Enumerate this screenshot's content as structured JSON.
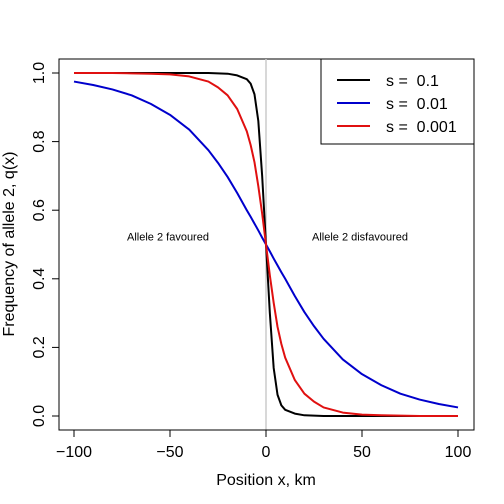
{
  "chart_data": {
    "type": "line",
    "xlabel": "Position x, km",
    "ylabel": "Frequency of allele 2, q(x)",
    "xlim": [
      -100,
      100
    ],
    "ylim": [
      0,
      1
    ],
    "xticks": [
      -100,
      -50,
      0,
      50,
      100
    ],
    "xtick_labels": [
      "−100",
      "−50",
      "0",
      "50",
      "100"
    ],
    "yticks": [
      0,
      0.2,
      0.4,
      0.6,
      0.8,
      1
    ],
    "ytick_labels": [
      "0.0",
      "0.2",
      "0.4",
      "0.6",
      "0.8",
      "1.0"
    ],
    "grid": false,
    "legend_position": "top-right",
    "vertical_line": {
      "x": 0,
      "color": "#cccccc"
    },
    "annotations": [
      {
        "text": "Allele 2 favoured",
        "x": -50,
        "y": 0.5
      },
      {
        "text": "Allele 2 disfavoured",
        "x": 50,
        "y": 0.5
      }
    ],
    "x": [
      -100,
      -90,
      -80,
      -70,
      -60,
      -50,
      -40,
      -30,
      -25,
      -20,
      -15,
      -10,
      -8,
      -6,
      -4,
      -2,
      0,
      2,
      4,
      6,
      8,
      10,
      15,
      20,
      25,
      30,
      40,
      50,
      60,
      70,
      80,
      90,
      100
    ],
    "series": [
      {
        "name": "s =  0.1",
        "color": "#000000",
        "values": [
          1.0,
          1.0,
          1.0,
          1.0,
          1.0,
          1.0,
          1.0,
          1.0,
          0.999,
          0.998,
          0.993,
          0.982,
          0.969,
          0.938,
          0.86,
          0.7,
          0.5,
          0.3,
          0.14,
          0.062,
          0.031,
          0.018,
          0.007,
          0.002,
          0.001,
          0.0,
          0.0,
          0.0,
          0.0,
          0.0,
          0.0,
          0.0,
          0.0
        ]
      },
      {
        "name": "s =  0.01",
        "color": "#0000cc",
        "values": [
          0.975,
          0.965,
          0.952,
          0.935,
          0.91,
          0.878,
          0.835,
          0.775,
          0.738,
          0.697,
          0.65,
          0.6,
          0.581,
          0.561,
          0.541,
          0.52,
          0.5,
          0.48,
          0.459,
          0.439,
          0.419,
          0.4,
          0.35,
          0.303,
          0.262,
          0.225,
          0.165,
          0.122,
          0.09,
          0.065,
          0.048,
          0.035,
          0.025
        ]
      },
      {
        "name": "s =  0.001",
        "color": "#e01010",
        "values": [
          1.0,
          1.0,
          1.0,
          0.999,
          0.998,
          0.996,
          0.99,
          0.975,
          0.958,
          0.935,
          0.895,
          0.83,
          0.79,
          0.74,
          0.67,
          0.59,
          0.5,
          0.41,
          0.33,
          0.26,
          0.21,
          0.17,
          0.105,
          0.065,
          0.042,
          0.025,
          0.01,
          0.004,
          0.002,
          0.001,
          0.0,
          0.0,
          0.0
        ]
      }
    ]
  }
}
